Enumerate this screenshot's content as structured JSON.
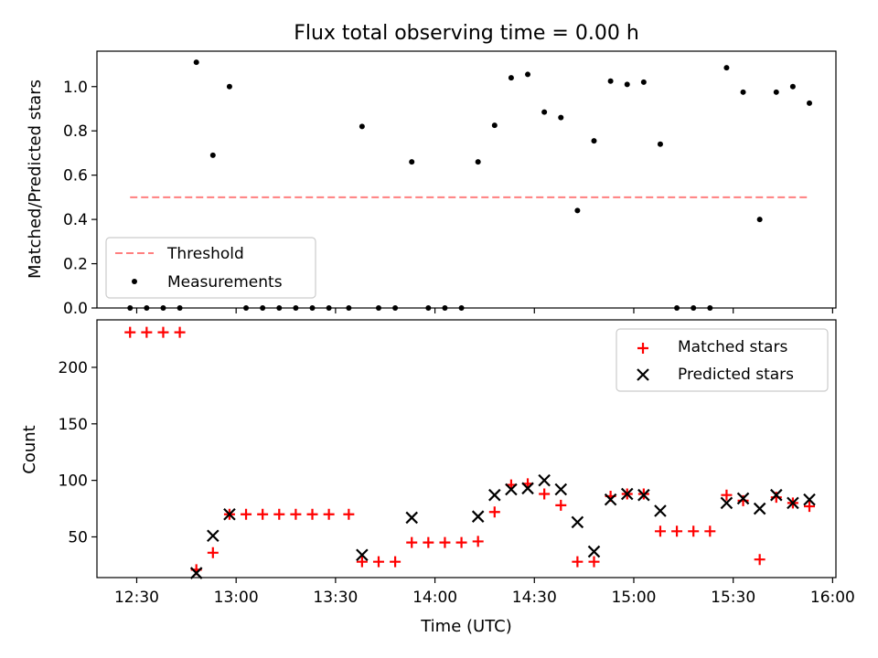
{
  "figure_title": "Flux total observing time = 0.00 h",
  "chart_data": [
    {
      "type": "scatter",
      "ylabel": "Matched/Predicted stars",
      "xlabel": "",
      "ylim": [
        0,
        1.16
      ],
      "xlim": [
        "12:18",
        "16:01"
      ],
      "yticks": [
        0.0,
        0.2,
        0.4,
        0.6,
        0.8,
        1.0
      ],
      "ytick_labels": [
        "0.0",
        "0.2",
        "0.4",
        "0.6",
        "0.8",
        "1.0"
      ],
      "legend_position": "lower-left",
      "threshold": {
        "name": "Threshold",
        "value": 0.5,
        "x": [
          "12:28",
          "15:53"
        ],
        "color": "#ff7f7f"
      },
      "series": [
        {
          "name": "Measurements",
          "color": "#000000",
          "points": [
            [
              "12:28",
              0.0
            ],
            [
              "12:33",
              0.0
            ],
            [
              "12:38",
              0.0
            ],
            [
              "12:43",
              0.0
            ],
            [
              "12:48",
              1.11
            ],
            [
              "12:53",
              0.69
            ],
            [
              "12:58",
              1.0
            ],
            [
              "13:03",
              0.0
            ],
            [
              "13:08",
              0.0
            ],
            [
              "13:13",
              0.0
            ],
            [
              "13:18",
              0.0
            ],
            [
              "13:23",
              0.0
            ],
            [
              "13:28",
              0.0
            ],
            [
              "13:34",
              0.0
            ],
            [
              "13:38",
              0.82
            ],
            [
              "13:43",
              0.0
            ],
            [
              "13:48",
              0.0
            ],
            [
              "13:53",
              0.66
            ],
            [
              "13:58",
              0.0
            ],
            [
              "14:03",
              0.0
            ],
            [
              "14:08",
              0.0
            ],
            [
              "14:13",
              0.66
            ],
            [
              "14:18",
              0.825
            ],
            [
              "14:23",
              1.04
            ],
            [
              "14:28",
              1.055
            ],
            [
              "14:33",
              0.885
            ],
            [
              "14:38",
              0.86
            ],
            [
              "14:43",
              0.44
            ],
            [
              "14:48",
              0.755
            ],
            [
              "14:53",
              1.025
            ],
            [
              "14:58",
              1.01
            ],
            [
              "15:03",
              1.02
            ],
            [
              "15:08",
              0.74
            ],
            [
              "15:13",
              0.0
            ],
            [
              "15:18",
              0.0
            ],
            [
              "15:23",
              0.0
            ],
            [
              "15:28",
              1.085
            ],
            [
              "15:33",
              0.975
            ],
            [
              "15:38",
              0.4
            ],
            [
              "15:43",
              0.975
            ],
            [
              "15:48",
              1.0
            ],
            [
              "15:53",
              0.925
            ]
          ]
        }
      ]
    },
    {
      "type": "scatter",
      "xlabel": "Time (UTC)",
      "ylabel": "Count",
      "ylim": [
        14,
        242
      ],
      "xlim": [
        "12:18",
        "16:01"
      ],
      "yticks": [
        50,
        100,
        150,
        200
      ],
      "ytick_labels": [
        "50",
        "100",
        "150",
        "200"
      ],
      "xticks": [
        "12:30",
        "13:00",
        "13:30",
        "14:00",
        "14:30",
        "15:00",
        "15:30",
        "16:00"
      ],
      "legend_position": "upper-right",
      "series": [
        {
          "name": "Matched stars",
          "marker": "+",
          "color": "#ff0000",
          "points": [
            [
              "12:28",
              231
            ],
            [
              "12:33",
              231
            ],
            [
              "12:38",
              231
            ],
            [
              "12:43",
              231
            ],
            [
              "12:48",
              21
            ],
            [
              "12:53",
              36
            ],
            [
              "12:58",
              70
            ],
            [
              "13:03",
              70
            ],
            [
              "13:08",
              70
            ],
            [
              "13:13",
              70
            ],
            [
              "13:18",
              70
            ],
            [
              "13:23",
              70
            ],
            [
              "13:28",
              70
            ],
            [
              "13:34",
              70
            ],
            [
              "13:38",
              28
            ],
            [
              "13:43",
              28
            ],
            [
              "13:48",
              28
            ],
            [
              "13:53",
              45
            ],
            [
              "13:58",
              45
            ],
            [
              "14:03",
              45
            ],
            [
              "14:08",
              45
            ],
            [
              "14:13",
              46
            ],
            [
              "14:18",
              72
            ],
            [
              "14:23",
              96
            ],
            [
              "14:28",
              97
            ],
            [
              "14:33",
              88
            ],
            [
              "14:38",
              78
            ],
            [
              "14:43",
              28
            ],
            [
              "14:48",
              28
            ],
            [
              "14:53",
              86
            ],
            [
              "14:58",
              88
            ],
            [
              "15:03",
              88
            ],
            [
              "15:08",
              55
            ],
            [
              "15:13",
              55
            ],
            [
              "15:18",
              55
            ],
            [
              "15:23",
              55
            ],
            [
              "15:28",
              87
            ],
            [
              "15:33",
              82
            ],
            [
              "15:38",
              30
            ],
            [
              "15:43",
              85
            ],
            [
              "15:48",
              80
            ],
            [
              "15:53",
              77
            ]
          ]
        },
        {
          "name": "Predicted stars",
          "marker": "x",
          "color": "#000000",
          "points": [
            [
              "12:48",
              18
            ],
            [
              "12:53",
              51
            ],
            [
              "12:58",
              70
            ],
            [
              "13:38",
              34
            ],
            [
              "13:53",
              67
            ],
            [
              "14:13",
              68
            ],
            [
              "14:18",
              87
            ],
            [
              "14:23",
              92
            ],
            [
              "14:28",
              93
            ],
            [
              "14:33",
              100
            ],
            [
              "14:38",
              92
            ],
            [
              "14:43",
              63
            ],
            [
              "14:48",
              37
            ],
            [
              "14:53",
              83
            ],
            [
              "14:58",
              88
            ],
            [
              "15:03",
              87
            ],
            [
              "15:08",
              73
            ],
            [
              "15:28",
              80
            ],
            [
              "15:33",
              84
            ],
            [
              "15:38",
              75
            ],
            [
              "15:43",
              87
            ],
            [
              "15:48",
              80
            ],
            [
              "15:53",
              83
            ]
          ]
        }
      ]
    }
  ]
}
